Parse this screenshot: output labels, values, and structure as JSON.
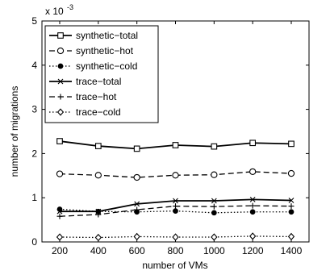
{
  "chart_data": {
    "type": "line",
    "title": "",
    "xlabel": "number of VMs",
    "ylabel": "number of migrations",
    "y_multiplier_label": "x 10",
    "y_multiplier_exponent": "-3",
    "x": [
      200,
      400,
      600,
      800,
      1000,
      1200,
      1400
    ],
    "x_ticks": [
      "200",
      "400",
      "600",
      "800",
      "1000",
      "1200",
      "1400"
    ],
    "xlim": [
      200,
      1400
    ],
    "y_ticks": [
      "0",
      "1",
      "2",
      "3",
      "4",
      "5"
    ],
    "ylim": [
      0,
      5
    ],
    "y_units_note": "values in units of 10^-3",
    "legend_position": "top-left",
    "grid": false,
    "series": [
      {
        "name": "synthetic−total",
        "line": "solid",
        "marker": "square",
        "values": [
          2.28,
          2.17,
          2.11,
          2.19,
          2.16,
          2.24,
          2.22
        ]
      },
      {
        "name": "synthetic−hot",
        "line": "dashed",
        "marker": "circle",
        "values": [
          1.54,
          1.51,
          1.46,
          1.51,
          1.52,
          1.59,
          1.55
        ]
      },
      {
        "name": "synthetic−cold",
        "line": "dotted",
        "marker": "dot",
        "values": [
          0.74,
          0.69,
          0.68,
          0.7,
          0.66,
          0.68,
          0.68
        ]
      },
      {
        "name": "trace−total",
        "line": "solid",
        "marker": "x",
        "values": [
          0.69,
          0.69,
          0.86,
          0.93,
          0.93,
          0.96,
          0.94
        ]
      },
      {
        "name": "trace−hot",
        "line": "dashed",
        "marker": "plus",
        "values": [
          0.58,
          0.62,
          0.73,
          0.81,
          0.8,
          0.82,
          0.81
        ]
      },
      {
        "name": "trace−cold",
        "line": "dotted",
        "marker": "diamond",
        "values": [
          0.11,
          0.1,
          0.12,
          0.11,
          0.11,
          0.13,
          0.12
        ]
      }
    ]
  }
}
